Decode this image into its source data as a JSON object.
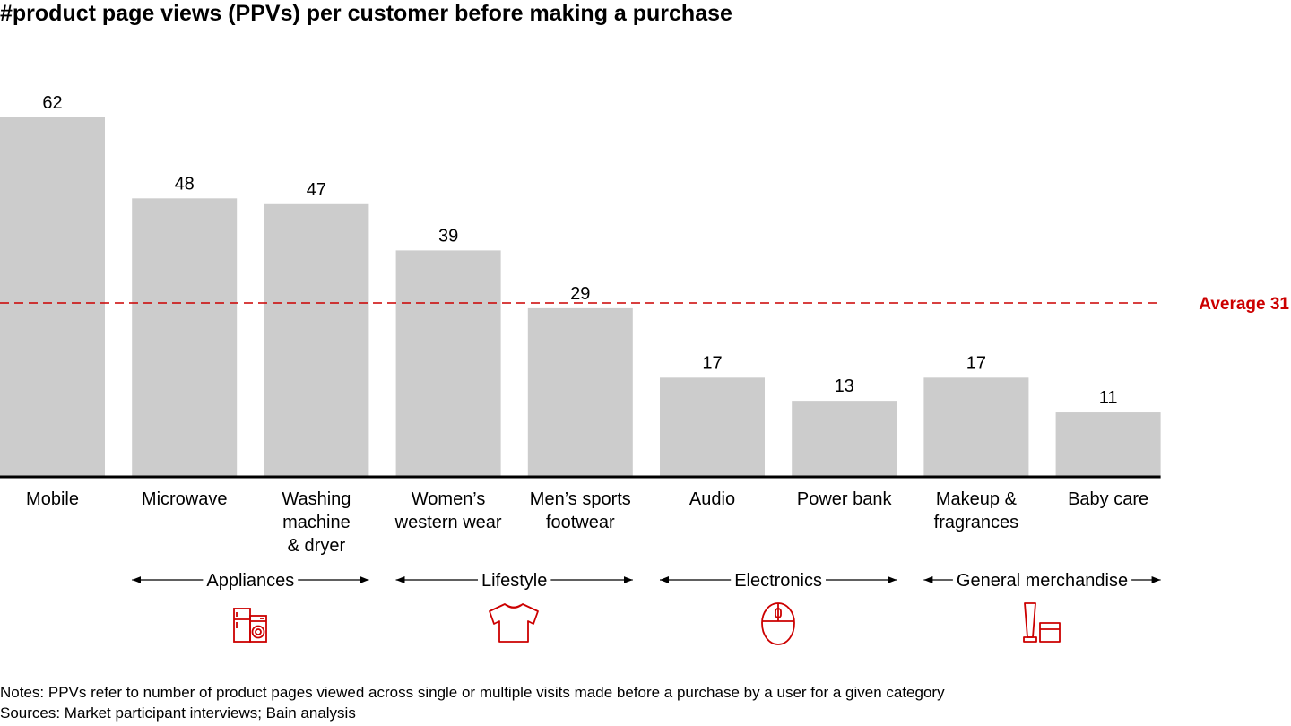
{
  "title": "#product page views (PPVs) per customer before making a purchase",
  "notes": "Notes: PPVs refer to number of product pages viewed across single or multiple visits made before a purchase by a user for a given category",
  "sources": "Sources: Market participant interviews; Bain analysis",
  "colors": {
    "bar": "#cccccc",
    "average": "#cc0000",
    "icon": "#cc0000",
    "axis": "#000000"
  },
  "chart_data": {
    "type": "bar",
    "title": "#product page views (PPVs) per customer before making a purchase",
    "xlabel": "",
    "ylabel": "",
    "ylim": [
      0,
      62
    ],
    "grid": false,
    "categories": [
      [
        "Mobile"
      ],
      [
        "Microwave"
      ],
      [
        "Washing",
        "machine",
        "& dryer"
      ],
      [
        "Women’s",
        "western wear"
      ],
      [
        "Men’s sports",
        "footwear"
      ],
      [
        "Audio"
      ],
      [
        "Power bank"
      ],
      [
        "Makeup &",
        "fragrances"
      ],
      [
        "Baby care"
      ]
    ],
    "values": [
      62,
      48,
      47,
      39,
      29,
      17,
      13,
      17,
      11
    ],
    "average": {
      "label": "Average 31",
      "value": 31
    },
    "groups": [
      {
        "label": "Appliances",
        "start": 1,
        "end": 2,
        "icon": "fridge-washer-icon"
      },
      {
        "label": "Lifestyle",
        "start": 3,
        "end": 4,
        "icon": "tshirt-icon"
      },
      {
        "label": "Electronics",
        "start": 5,
        "end": 6,
        "icon": "mouse-icon"
      },
      {
        "label": "General merchandise",
        "start": 7,
        "end": 8,
        "icon": "cosmetics-icon"
      }
    ]
  }
}
